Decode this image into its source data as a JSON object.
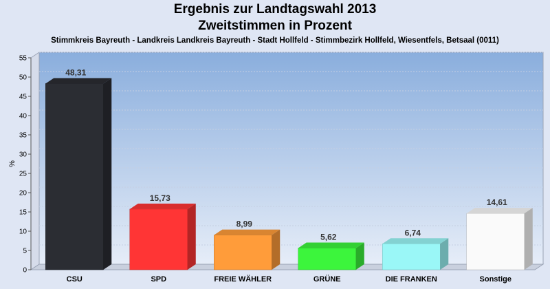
{
  "chart_data": {
    "type": "bar",
    "title": "Ergebnis zur Landtagswahl 2013",
    "subtitle": "Zweitstimmen in Prozent",
    "caption": "Stimmkreis Bayreuth - Landkreis Landkreis Bayreuth - Stadt Hollfeld - Stimmbezirk Hollfeld, Wiesentfels, Betsaal (0011)",
    "xlabel": "",
    "ylabel": "%",
    "ylim": [
      0,
      55
    ],
    "yticks": [
      0,
      5,
      10,
      15,
      20,
      25,
      30,
      35,
      40,
      45,
      50,
      55
    ],
    "grid": true,
    "categories": [
      "CSU",
      "SPD",
      "FREIE WÄHLER",
      "GRÜNE",
      "DIE FRANKEN",
      "Sonstige"
    ],
    "values": [
      48.31,
      15.73,
      8.99,
      5.62,
      6.74,
      14.61
    ],
    "value_labels": [
      "48,31",
      "15,73",
      "8,99",
      "5,62",
      "6,74",
      "14,61"
    ],
    "colors": [
      "#2b2d33",
      "#ff3535",
      "#ff9c3a",
      "#3cf53c",
      "#9af7f7",
      "#fafafa"
    ]
  }
}
